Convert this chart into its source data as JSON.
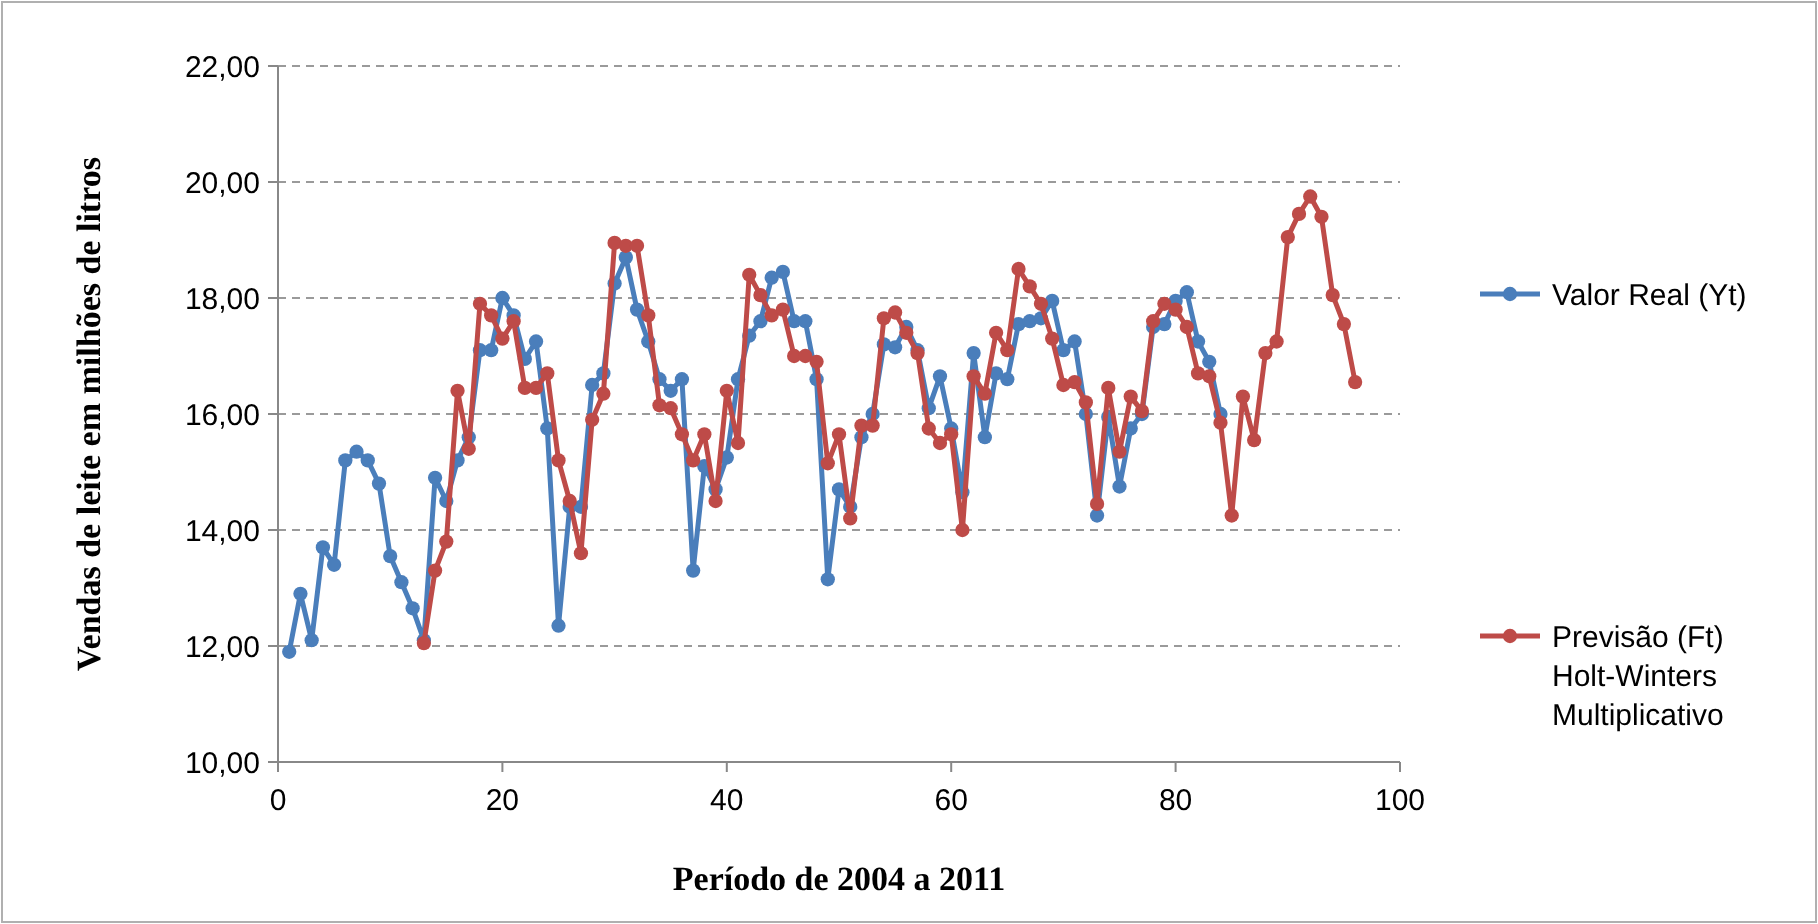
{
  "chart_data": {
    "type": "line",
    "xlabel": "Período de 2004 a 2011",
    "ylabel": "Vendas de leite em milhões de litros",
    "xlim": [
      0,
      100
    ],
    "xticks": [
      0,
      20,
      40,
      60,
      80,
      100
    ],
    "ylim": [
      10,
      22
    ],
    "yticks": [
      {
        "value": 10,
        "label": "10,00"
      },
      {
        "value": 12,
        "label": "12,00"
      },
      {
        "value": 14,
        "label": "14,00"
      },
      {
        "value": 16,
        "label": "16,00"
      },
      {
        "value": 18,
        "label": "18,00"
      },
      {
        "value": 20,
        "label": "20,00"
      },
      {
        "value": 22,
        "label": "22,00"
      }
    ],
    "grid": "y",
    "legend": "right",
    "marker": "circle",
    "series": [
      {
        "name": "Valor Real (Yt)",
        "color": "#4a7ebb",
        "x": [
          1,
          2,
          3,
          4,
          5,
          6,
          7,
          8,
          9,
          10,
          11,
          12,
          13,
          14,
          15,
          16,
          17,
          18,
          19,
          20,
          21,
          22,
          23,
          24,
          25,
          26,
          27,
          28,
          29,
          30,
          31,
          32,
          33,
          34,
          35,
          36,
          37,
          38,
          39,
          40,
          41,
          42,
          43,
          44,
          45,
          46,
          47,
          48,
          49,
          50,
          51,
          52,
          53,
          54,
          55,
          56,
          57,
          58,
          59,
          60,
          61,
          62,
          63,
          64,
          65,
          66,
          67,
          68,
          69,
          70,
          71,
          72,
          73,
          74,
          75,
          76,
          77,
          78,
          79,
          80,
          81,
          82,
          83,
          84
        ],
        "values": [
          11.9,
          12.9,
          12.1,
          13.7,
          13.4,
          15.2,
          15.35,
          15.2,
          14.8,
          13.55,
          13.1,
          12.65,
          12.1,
          14.9,
          14.5,
          15.2,
          15.6,
          17.1,
          17.1,
          18.0,
          17.7,
          16.95,
          17.25,
          15.75,
          12.35,
          14.4,
          14.4,
          16.5,
          16.7,
          18.25,
          18.7,
          17.8,
          17.25,
          16.6,
          16.4,
          16.6,
          13.3,
          15.1,
          14.7,
          15.25,
          16.6,
          17.35,
          17.6,
          18.35,
          18.45,
          17.6,
          17.6,
          16.6,
          13.15,
          14.7,
          14.4,
          15.6,
          16.0,
          17.2,
          17.15,
          17.5,
          17.1,
          16.1,
          16.65,
          15.75,
          14.65,
          17.05,
          15.6,
          16.7,
          16.6,
          17.55,
          17.6,
          17.65,
          17.95,
          17.1,
          17.25,
          16.0,
          14.25,
          15.95,
          14.75,
          15.75,
          16.0,
          17.5,
          17.55,
          17.95,
          18.1,
          17.25,
          16.9,
          16.0
        ]
      },
      {
        "name": "Previsão (Ft) Holt-Winters Multiplicativo",
        "color": "#be4b48",
        "x": [
          13,
          14,
          15,
          16,
          17,
          18,
          19,
          20,
          21,
          22,
          23,
          24,
          25,
          26,
          27,
          28,
          29,
          30,
          31,
          32,
          33,
          34,
          35,
          36,
          37,
          38,
          39,
          40,
          41,
          42,
          43,
          44,
          45,
          46,
          47,
          48,
          49,
          50,
          51,
          52,
          53,
          54,
          55,
          56,
          57,
          58,
          59,
          60,
          61,
          62,
          63,
          64,
          65,
          66,
          67,
          68,
          69,
          70,
          71,
          72,
          73,
          74,
          75,
          76,
          77,
          78,
          79,
          80,
          81,
          82,
          83,
          84,
          85,
          86,
          87,
          88,
          89,
          90,
          91,
          92,
          93,
          94,
          95,
          96
        ],
        "values": [
          12.05,
          13.3,
          13.8,
          16.4,
          15.4,
          17.9,
          17.7,
          17.3,
          17.6,
          16.45,
          16.45,
          16.7,
          15.2,
          14.5,
          13.6,
          15.9,
          16.35,
          18.95,
          18.9,
          18.9,
          17.7,
          16.15,
          16.1,
          15.65,
          15.2,
          15.65,
          14.5,
          16.4,
          15.5,
          18.4,
          18.05,
          17.7,
          17.8,
          17.0,
          17.0,
          16.9,
          15.15,
          15.65,
          14.2,
          15.8,
          15.8,
          17.65,
          17.75,
          17.4,
          17.05,
          15.75,
          15.5,
          15.65,
          14.0,
          16.65,
          16.35,
          17.4,
          17.1,
          18.5,
          18.2,
          17.9,
          17.3,
          16.5,
          16.55,
          16.2,
          14.45,
          16.45,
          15.35,
          16.3,
          16.05,
          17.6,
          17.9,
          17.8,
          17.5,
          16.7,
          16.65,
          15.85,
          14.25,
          16.3,
          15.55,
          17.05,
          17.25,
          19.05,
          19.45,
          19.75,
          19.4,
          18.05,
          17.55,
          16.55
        ]
      }
    ]
  }
}
